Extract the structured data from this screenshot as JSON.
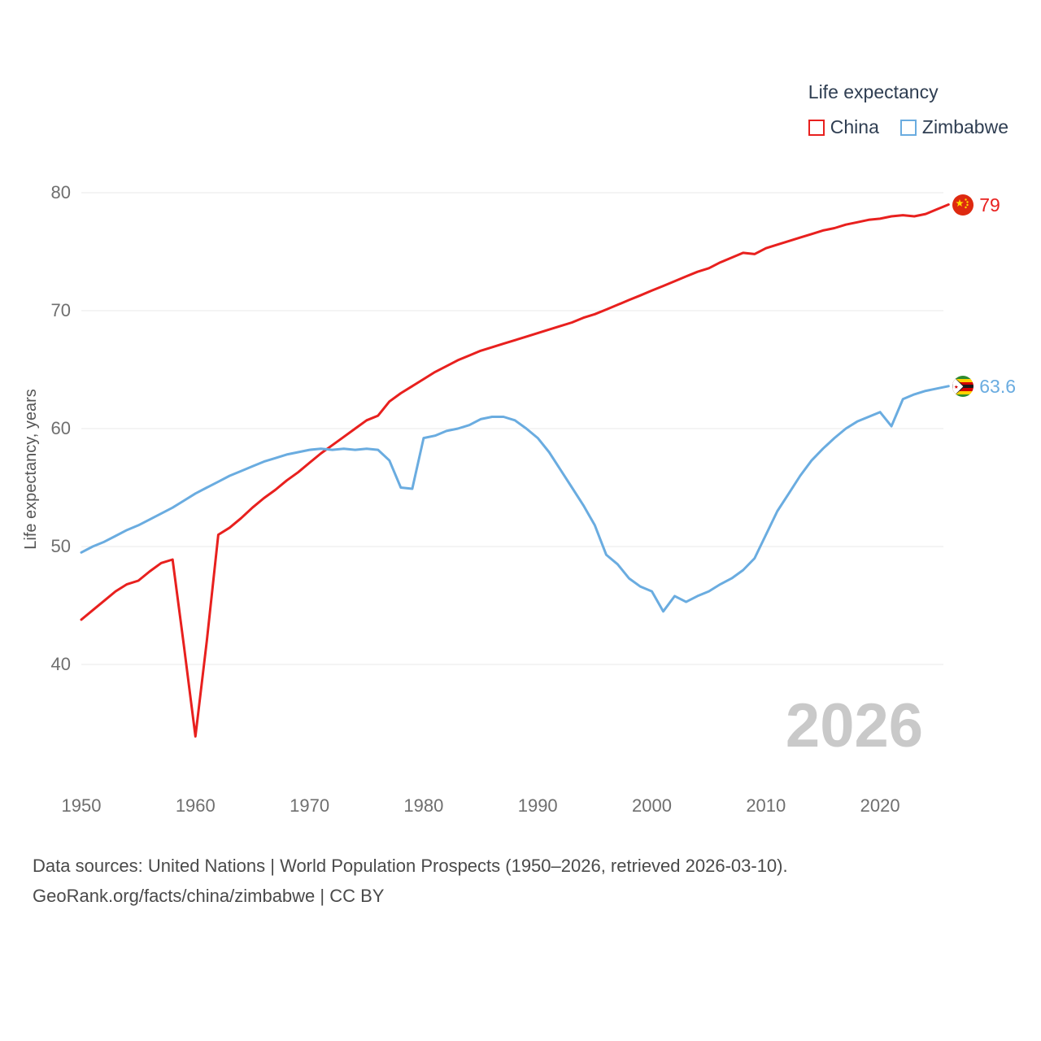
{
  "legend": {
    "title": "Life expectancy",
    "series": [
      {
        "label": "China",
        "color": "#e8201e"
      },
      {
        "label": "Zimbabwe",
        "color": "#6aace0"
      }
    ]
  },
  "chart_data": {
    "type": "line",
    "title": "Life expectancy",
    "xlabel": "",
    "ylabel": "Life expectancy, years",
    "watermark": "2026",
    "grid": "horizontal",
    "legend_position": "top-right",
    "x_ticks": [
      1950,
      1960,
      1970,
      1980,
      1990,
      2000,
      2010,
      2020
    ],
    "y_ticks": [
      40,
      50,
      60,
      70,
      80
    ],
    "xlim": [
      1950,
      2026
    ],
    "ylim": [
      33,
      82
    ],
    "years": [
      1950,
      1951,
      1952,
      1953,
      1954,
      1955,
      1956,
      1957,
      1958,
      1959,
      1960,
      1961,
      1962,
      1963,
      1964,
      1965,
      1966,
      1967,
      1968,
      1969,
      1970,
      1971,
      1972,
      1973,
      1974,
      1975,
      1976,
      1977,
      1978,
      1979,
      1980,
      1981,
      1982,
      1983,
      1984,
      1985,
      1986,
      1987,
      1988,
      1989,
      1990,
      1991,
      1992,
      1993,
      1994,
      1995,
      1996,
      1997,
      1998,
      1999,
      2000,
      2001,
      2002,
      2003,
      2004,
      2005,
      2006,
      2007,
      2008,
      2009,
      2010,
      2011,
      2012,
      2013,
      2014,
      2015,
      2016,
      2017,
      2018,
      2019,
      2020,
      2021,
      2022,
      2023,
      2024,
      2025,
      2026
    ],
    "series": [
      {
        "name": "China",
        "color": "#e8201e",
        "end_label": "79",
        "end_value": 79,
        "values": [
          43.8,
          44.6,
          45.4,
          46.2,
          46.8,
          47.1,
          47.9,
          48.6,
          48.9,
          41.5,
          33.9,
          42.0,
          51.0,
          51.6,
          52.4,
          53.3,
          54.1,
          54.8,
          55.6,
          56.3,
          57.1,
          57.9,
          58.6,
          59.3,
          60.0,
          60.7,
          61.1,
          62.3,
          63.0,
          63.6,
          64.2,
          64.8,
          65.3,
          65.8,
          66.2,
          66.6,
          66.9,
          67.2,
          67.5,
          67.8,
          68.1,
          68.4,
          68.7,
          69.0,
          69.4,
          69.7,
          70.1,
          70.5,
          70.9,
          71.3,
          71.7,
          72.1,
          72.5,
          72.9,
          73.3,
          73.6,
          74.1,
          74.5,
          74.9,
          74.8,
          75.3,
          75.6,
          75.9,
          76.2,
          76.5,
          76.8,
          77.0,
          77.3,
          77.5,
          77.7,
          77.8,
          78.0,
          78.1,
          78.0,
          78.2,
          78.6,
          79.0
        ]
      },
      {
        "name": "Zimbabwe",
        "color": "#6aace0",
        "end_label": "63.6",
        "end_value": 63.6,
        "values": [
          49.5,
          50.0,
          50.4,
          50.9,
          51.4,
          51.8,
          52.3,
          52.8,
          53.3,
          53.9,
          54.5,
          55.0,
          55.5,
          56.0,
          56.4,
          56.8,
          57.2,
          57.5,
          57.8,
          58.0,
          58.2,
          58.3,
          58.2,
          58.3,
          58.2,
          58.3,
          58.2,
          57.3,
          55.0,
          54.9,
          59.2,
          59.4,
          59.8,
          60.0,
          60.3,
          60.8,
          61.0,
          61.0,
          60.7,
          60.0,
          59.2,
          58.0,
          56.5,
          55.0,
          53.5,
          51.8,
          49.3,
          48.5,
          47.3,
          46.6,
          46.2,
          44.5,
          45.8,
          45.3,
          45.8,
          46.2,
          46.8,
          47.3,
          48.0,
          49.0,
          51.0,
          53.0,
          54.5,
          56.0,
          57.3,
          58.3,
          59.2,
          60.0,
          60.6,
          61.0,
          61.4,
          60.2,
          62.5,
          62.9,
          63.2,
          63.4,
          63.6
        ]
      }
    ]
  },
  "footer": {
    "line1": "Data sources: United Nations | World Population Prospects (1950–2026, retrieved 2026-03-10).",
    "line2": "GeoRank.org/facts/china/zimbabwe | CC BY"
  }
}
